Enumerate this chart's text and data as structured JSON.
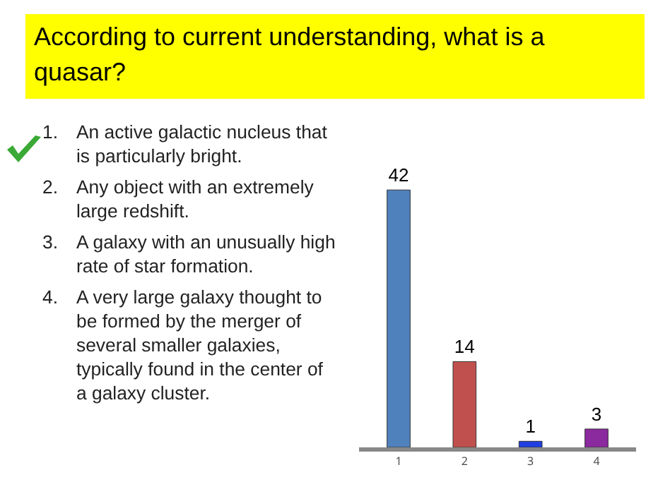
{
  "chart_data": {
    "type": "bar",
    "title": "According to current understanding, what is a quasar?",
    "annotations": [
      "1.\tAn active galactic nucleus that is particularly bright.",
      "2.\tAny object with an extremely large redshift.",
      "3.\tA galaxy with an unusually high rate of star formation.",
      "4.\tA very large galaxy thought to be formed by the merger of several smaller galaxies, typically found in the center of a galaxy cluster."
    ],
    "categories": [
      "1",
      "2",
      "3",
      "4"
    ],
    "values": [
      42,
      14,
      1,
      3
    ],
    "colors": [
      "#4f81bd",
      "#c0504d",
      "#1f3fe0",
      "#8b2a9e"
    ],
    "data_labels": true
  }
}
